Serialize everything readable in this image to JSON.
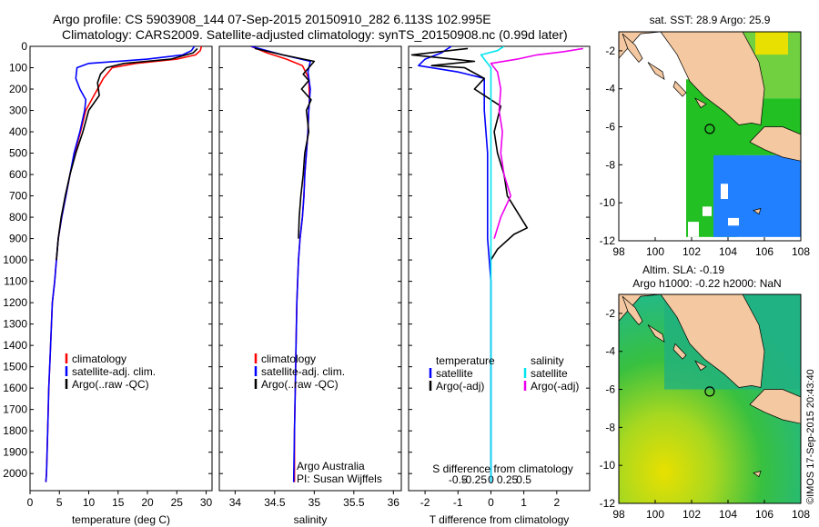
{
  "header": {
    "line1": "Argo profile: CS 5903908_144 07-Sep-2015 20150910_282 6.113S 102.995E",
    "line2": "Climatology: CARS2009. Satellite-adjusted climatology: synTS_20150908.nc (0.99d later)"
  },
  "credit": "©IMOS 17-Sep-2015 20:43:40",
  "attribution": {
    "line1": "Argo Australia",
    "line2": "PI: Susan Wijffels"
  },
  "colors": {
    "climatology": "#ff0000",
    "satellite": "#0000ff",
    "argo": "#000000",
    "sal_satellite": "#00e5ee",
    "sal_argo": "#ee00ee",
    "land": "#f4c8a0",
    "ocean_cold": "#2080ff",
    "ocean_warm": "#22c022",
    "ocean_hot": "#e8e000"
  },
  "chart_data": [
    {
      "type": "line",
      "xlabel": "temperature (deg C)",
      "xlim": [
        0,
        31
      ],
      "xticks": [
        "0",
        "5",
        "10",
        "15",
        "20",
        "25",
        "30"
      ],
      "ylim": [
        0,
        2080
      ],
      "yticks": [
        "0",
        "100",
        "200",
        "300",
        "400",
        "500",
        "600",
        "700",
        "800",
        "900",
        "1000",
        "1100",
        "1200",
        "1300",
        "1400",
        "1500",
        "1600",
        "1700",
        "1800",
        "1900",
        "2000"
      ],
      "legend": [
        "climatology",
        "satellite-adj. clim.",
        "Argo(..raw -QC)"
      ],
      "series": [
        {
          "name": "climatology",
          "color": "red",
          "x": [
            29.2,
            29.0,
            28.2,
            25.0,
            18.0,
            14.0,
            12.5,
            11.5,
            10.5,
            9.5,
            8.6,
            7.6,
            6.8,
            6.1,
            5.4,
            4.8,
            4.5,
            4.2,
            3.8,
            3.5,
            3.2,
            3.0,
            2.8,
            2.7
          ],
          "y": [
            0,
            20,
            40,
            60,
            80,
            100,
            150,
            200,
            250,
            300,
            400,
            500,
            600,
            700,
            800,
            900,
            1000,
            1100,
            1200,
            1400,
            1600,
            1800,
            2000,
            2040
          ]
        },
        {
          "name": "satellite-adj. clim.",
          "color": "blue",
          "x": [
            28.0,
            27.5,
            26.0,
            20.0,
            10.0,
            8.0,
            7.8,
            8.5,
            9.5,
            9.3,
            8.5,
            7.5,
            6.8,
            6.1,
            5.4,
            4.8,
            4.5,
            4.2,
            3.8,
            3.5,
            3.2,
            3.0,
            2.8,
            2.7
          ],
          "y": [
            0,
            20,
            40,
            60,
            80,
            100,
            150,
            200,
            250,
            300,
            400,
            500,
            600,
            700,
            800,
            900,
            1000,
            1100,
            1200,
            1400,
            1600,
            1800,
            2000,
            2040
          ]
        },
        {
          "name": "Argo(..raw -QC)",
          "color": "black",
          "x": [
            28.5,
            27.8,
            24.0,
            16.0,
            13.0,
            12.0,
            11.5,
            11.8,
            10.0,
            9.0,
            7.8,
            6.8,
            6.0,
            5.3,
            4.8,
            4.5
          ],
          "y": [
            10,
            30,
            60,
            80,
            100,
            130,
            170,
            230,
            300,
            400,
            500,
            600,
            700,
            800,
            900,
            1000
          ]
        }
      ]
    },
    {
      "type": "line",
      "xlabel": "salinity",
      "xlim": [
        33.8,
        36.1
      ],
      "xticks": [
        "34",
        "34.5",
        "35",
        "35.5",
        "36"
      ],
      "ylim": [
        0,
        2080
      ],
      "legend": [
        "climatology",
        "satellite-adj. clim.",
        "Argo(..raw -QC)"
      ],
      "series": [
        {
          "name": "climatology",
          "color": "red",
          "x": [
            34.2,
            34.4,
            34.65,
            34.85,
            34.93,
            34.94,
            34.93,
            34.92,
            34.9,
            34.88,
            34.87,
            34.85,
            34.82,
            34.8,
            34.78,
            34.77,
            34.76,
            34.75,
            34.75
          ],
          "y": [
            0,
            30,
            60,
            90,
            150,
            250,
            300,
            400,
            500,
            600,
            700,
            800,
            900,
            1000,
            1200,
            1400,
            1600,
            1800,
            2040
          ]
        },
        {
          "name": "satellite-adj. clim.",
          "color": "blue",
          "x": [
            34.2,
            34.6,
            34.95,
            34.92,
            34.95,
            34.93,
            34.92,
            34.9,
            34.88,
            34.87,
            34.85,
            34.82,
            34.8,
            34.78,
            34.77,
            34.76,
            34.75,
            34.74
          ],
          "y": [
            0,
            40,
            70,
            120,
            200,
            300,
            400,
            500,
            600,
            700,
            800,
            900,
            1000,
            1200,
            1400,
            1600,
            1800,
            2040
          ]
        },
        {
          "name": "Argo(..raw -QC)",
          "color": "black",
          "x": [
            34.25,
            34.6,
            35.0,
            34.86,
            34.93,
            34.84,
            34.96,
            34.9,
            34.93,
            34.88,
            34.86,
            34.83,
            34.81,
            34.8
          ],
          "y": [
            10,
            40,
            70,
            130,
            160,
            200,
            250,
            300,
            400,
            500,
            600,
            700,
            800,
            900
          ]
        }
      ]
    },
    {
      "type": "line",
      "xlabel": "T difference from climatology",
      "x2label": "S difference from climatology",
      "xlim": [
        -2.5,
        3.0
      ],
      "xticks": [
        "-2",
        "-1",
        "0",
        "1",
        "2"
      ],
      "x2ticks": [
        "-0.5",
        "-0.25",
        "0",
        "0.25",
        "0.5"
      ],
      "ylim": [
        0,
        2080
      ],
      "legend_headers": [
        "temperature",
        "salinity"
      ],
      "legend": [
        "satellite",
        "Argo(-adj)",
        "satellite",
        "Argo(-adj)"
      ],
      "series": [
        {
          "name": "satellite",
          "group": "temperature",
          "color": "blue",
          "x": [
            -1.2,
            -1.5,
            -2.0,
            -2.2,
            -1.0,
            -0.2,
            -0.2,
            -0.1,
            -0.1,
            -0.1,
            0.0,
            0.0,
            0.0,
            0.0
          ],
          "y": [
            0,
            30,
            60,
            90,
            120,
            150,
            300,
            500,
            700,
            900,
            1100,
            1400,
            1700,
            2040
          ]
        },
        {
          "name": "Argo(-adj)",
          "group": "temperature",
          "color": "black",
          "x": [
            -0.7,
            -2.4,
            -0.5,
            -1.8,
            -0.8,
            -0.2,
            -0.5,
            0.3,
            0.1,
            0.2,
            0.4,
            0.5,
            0.9,
            1.1,
            0.7,
            0.2,
            0.0
          ],
          "y": [
            10,
            40,
            70,
            90,
            100,
            150,
            200,
            280,
            400,
            500,
            600,
            700,
            800,
            850,
            880,
            950,
            1000
          ]
        },
        {
          "name": "satellite",
          "group": "salinity",
          "color": "cyan",
          "x": [
            0.4,
            0.2,
            -0.3,
            -0.2,
            0.0,
            0.0,
            0.0,
            0.0,
            0.0,
            0.0,
            0.0,
            0.0,
            0.0
          ],
          "y": [
            0,
            20,
            40,
            60,
            100,
            200,
            400,
            600,
            800,
            1000,
            1400,
            1800,
            2040
          ]
        },
        {
          "name": "Argo(-adj)",
          "group": "salinity",
          "color": "magenta",
          "x": [
            2.8,
            2.2,
            1.4,
            0.8,
            0.0,
            0.2,
            0.3,
            0.25,
            0.35,
            0.3,
            0.4,
            0.6,
            0.3,
            0.1
          ],
          "y": [
            10,
            25,
            40,
            60,
            80,
            120,
            200,
            300,
            400,
            500,
            600,
            700,
            800,
            900
          ]
        }
      ]
    },
    {
      "type": "heatmap",
      "title": "sat. SST: 28.9 Argo: 25.9",
      "xlim": [
        98,
        108
      ],
      "ylim": [
        -12,
        -1
      ],
      "xticks": [
        "98",
        "100",
        "102",
        "104",
        "106",
        "108"
      ],
      "yticks": [
        "-2",
        "-4",
        "-6",
        "-8",
        "-10",
        "-12"
      ],
      "argo_position": [
        102.995,
        -6.113
      ]
    },
    {
      "type": "heatmap",
      "title": "Altim. SLA: -0.19",
      "subtitle": "Argo h1000: -0.22 h2000: NaN",
      "xlim": [
        98,
        108
      ],
      "ylim": [
        -12,
        -1
      ],
      "xticks": [
        "98",
        "100",
        "102",
        "104",
        "106",
        "108"
      ],
      "yticks": [
        "-2",
        "-4",
        "-6",
        "-8",
        "-10",
        "-12"
      ],
      "argo_position": [
        102.995,
        -6.113
      ]
    }
  ]
}
